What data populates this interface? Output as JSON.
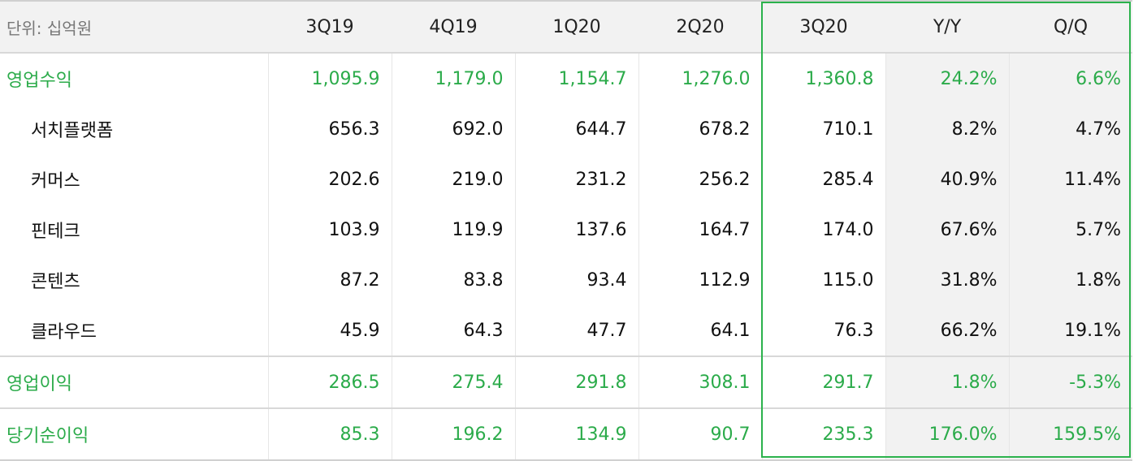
{
  "table": {
    "header": [
      "단위: 십억원",
      "3Q19",
      "4Q19",
      "1Q20",
      "2Q20",
      "3Q20",
      "Y/Y",
      "Q/Q"
    ],
    "rows": [
      [
        "영업수익",
        "1,095.9",
        "1,179.0",
        "1,154.7",
        "1,276.0",
        "1,360.8",
        "24.2%",
        "6.6%"
      ],
      [
        "서치플랫폼",
        "656.3",
        "692.0",
        "644.7",
        "678.2",
        "710.1",
        "8.2%",
        "4.7%"
      ],
      [
        "커머스",
        "202.6",
        "219.0",
        "231.2",
        "256.2",
        "285.4",
        "40.9%",
        "11.4%"
      ],
      [
        "핀테크",
        "103.9",
        "119.9",
        "137.6",
        "164.7",
        "174.0",
        "67.6%",
        "5.7%"
      ],
      [
        "콘텐츠",
        "87.2",
        "83.8",
        "93.4",
        "112.9",
        "115.0",
        "31.8%",
        "1.8%"
      ],
      [
        "클라우드",
        "45.9",
        "64.3",
        "47.7",
        "64.1",
        "76.3",
        "66.2%",
        "19.1%"
      ],
      [
        "영업이익",
        "286.5",
        "275.4",
        "291.8",
        "308.1",
        "291.7",
        "1.8%",
        "-5.3%"
      ],
      [
        "당기순이익",
        "85.3",
        "196.2",
        "134.9",
        "90.7",
        "235.3",
        "176.0%",
        "159.5%"
      ]
    ]
  }
}
